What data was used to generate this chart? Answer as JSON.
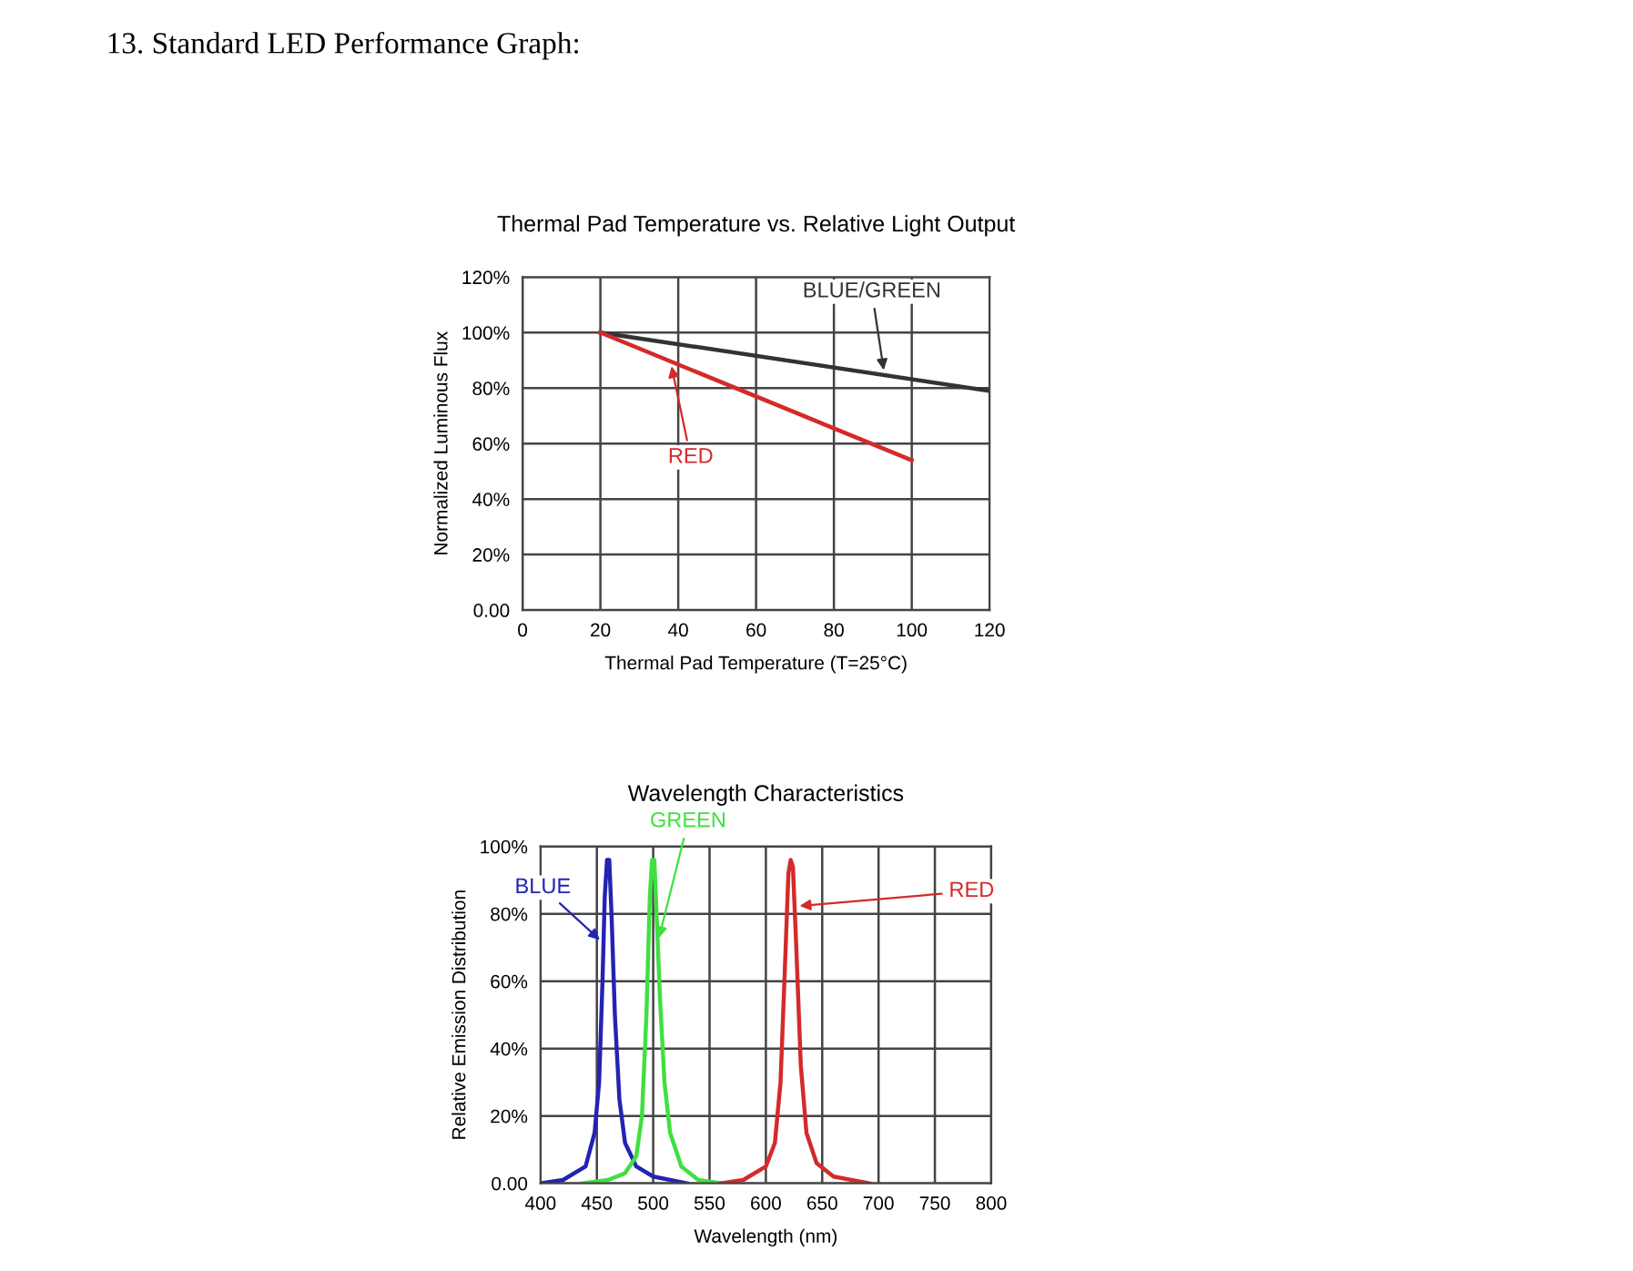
{
  "chart_data": [
    {
      "type": "line",
      "title": "Thermal Pad Temperature vs. Relative Light Output",
      "xlabel": "Thermal Pad Temperature (T=25°C)",
      "ylabel": "Normalized Luminous Flux",
      "annotations": [
        "13. Standard LED Performance Graph:"
      ],
      "series": [
        {
          "name": "BLUE/GREEN",
          "color": "#333333",
          "x": [
            20,
            120
          ],
          "values": [
            100,
            79
          ]
        },
        {
          "name": "RED",
          "color": "#d42a2a",
          "x": [
            20,
            100
          ],
          "values": [
            100,
            54
          ]
        }
      ],
      "xlim": [
        0,
        120
      ],
      "xticks": [
        0,
        20,
        40,
        60,
        80,
        100,
        120
      ],
      "ylim": [
        0,
        120
      ],
      "yticks": [
        {
          "value": 0,
          "label": "0.00"
        },
        {
          "value": 20,
          "label": "20%"
        },
        {
          "value": 40,
          "label": "40%"
        },
        {
          "value": 60,
          "label": "60%"
        },
        {
          "value": 80,
          "label": "80%"
        },
        {
          "value": 100,
          "label": "100%"
        },
        {
          "value": 120,
          "label": "120%"
        }
      ],
      "grid": true,
      "legend": false,
      "marker": "none",
      "line_style": "solid"
    },
    {
      "type": "line",
      "title": "Wavelength Characteristics",
      "xlabel": "Wavelength (nm)",
      "ylabel": "Relative Emission Distribution",
      "series": [
        {
          "name": "BLUE",
          "color": "#2323b4",
          "x": [
            400,
            420,
            440,
            448,
            452,
            455,
            457,
            459,
            461,
            463,
            466,
            470,
            475,
            485,
            500,
            530
          ],
          "values": [
            0,
            1,
            5,
            15,
            30,
            60,
            85,
            96,
            96,
            80,
            50,
            25,
            12,
            5,
            2,
            0
          ]
        },
        {
          "name": "GREEN",
          "color": "#3fe03f",
          "x": [
            437,
            460,
            475,
            485,
            490,
            494,
            497,
            499,
            501,
            503,
            506,
            510,
            515,
            525,
            540,
            560
          ],
          "values": [
            0,
            1,
            3,
            8,
            20,
            50,
            85,
            96,
            96,
            80,
            55,
            30,
            15,
            5,
            1,
            0
          ]
        },
        {
          "name": "RED",
          "color": "#d42a2a",
          "x": [
            560,
            580,
            600,
            608,
            613,
            617,
            620,
            622,
            624,
            627,
            631,
            636,
            645,
            660,
            692
          ],
          "values": [
            0,
            1,
            5,
            12,
            30,
            65,
            92,
            96,
            94,
            70,
            35,
            15,
            6,
            2,
            0
          ]
        }
      ],
      "xlim": [
        400,
        800
      ],
      "xticks": [
        400,
        450,
        500,
        550,
        600,
        650,
        700,
        750,
        800
      ],
      "ylim": [
        0,
        100
      ],
      "yticks": [
        {
          "value": 0,
          "label": "0.00"
        },
        {
          "value": 20,
          "label": "20%"
        },
        {
          "value": 40,
          "label": "40%"
        },
        {
          "value": 60,
          "label": "60%"
        },
        {
          "value": 80,
          "label": "80%"
        },
        {
          "value": 100,
          "label": "100%"
        }
      ],
      "grid": true,
      "legend": false,
      "marker": "none",
      "line_style": "solid"
    }
  ]
}
